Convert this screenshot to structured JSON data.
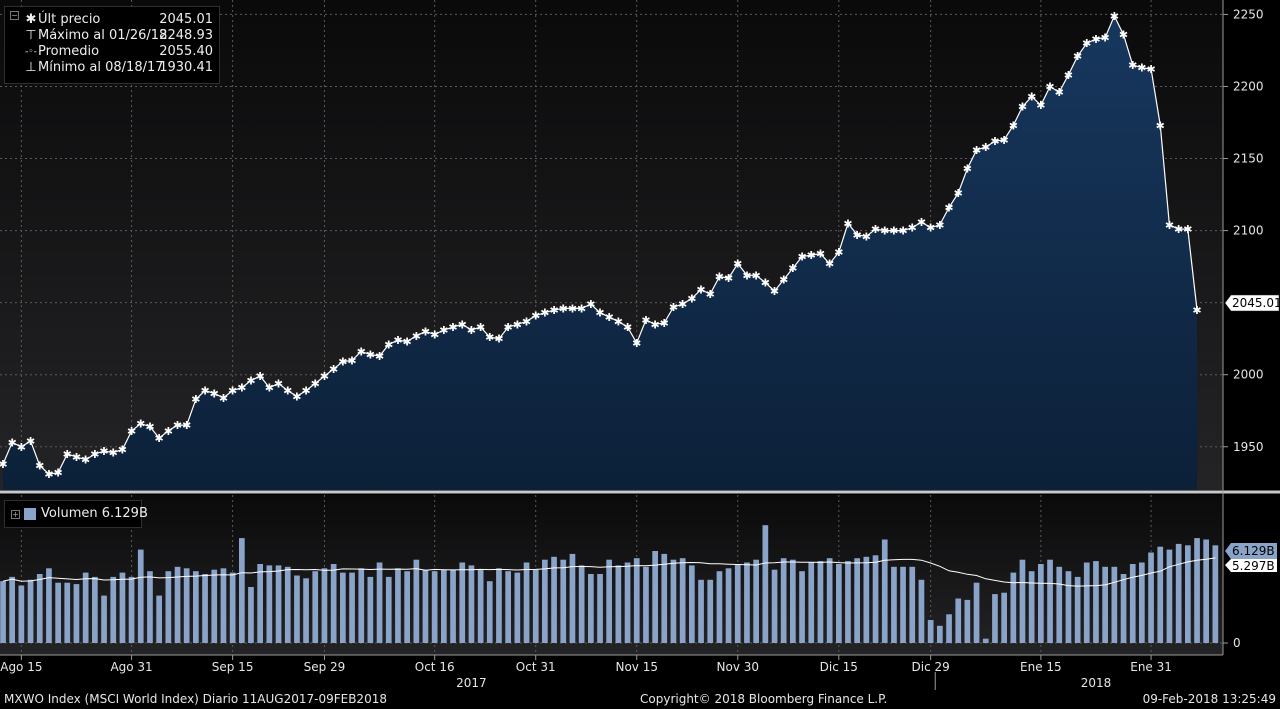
{
  "legend": {
    "rows": [
      {
        "icon": "✱",
        "label": "Últ precio",
        "value": "2045.01"
      },
      {
        "icon": "⊤",
        "label": "Máximo al 01/26/18",
        "value": "2248.93"
      },
      {
        "icon": "-◦-",
        "label": "Promedio",
        "value": "2055.40"
      },
      {
        "icon": "⊥",
        "label": "Mínimo al 08/18/17",
        "value": "1930.41"
      }
    ]
  },
  "volume_legend": {
    "label": "Volumen 6.129B"
  },
  "footer": {
    "left": "MXWO Index (MSCI World Index)  Diario 11AUG2017-09FEB2018",
    "center": "Copyright© 2018 Bloomberg Finance L.P.",
    "right": "09-Feb-2018 13:25:49"
  },
  "colors": {
    "area_top": "#17375e",
    "area_bottom": "#0c2038",
    "line": "#ffffff",
    "volume_bar": "#8aa3c8",
    "grid": "#5a5a5a"
  },
  "chart_data": [
    {
      "type": "area",
      "title": "",
      "series": [
        {
          "name": "Últ precio"
        }
      ],
      "y_ticks": [
        "2250",
        "2200",
        "2150",
        "2100",
        "2000",
        "1950"
      ],
      "ylim": [
        1920,
        2260
      ],
      "last_value_label": "2045.01",
      "x_tick_labels": [
        "Ago 15",
        "Ago 31",
        "Sep 15",
        "Sep 29",
        "Oct 16",
        "Oct 31",
        "Nov 15",
        "Nov 30",
        "Dic 15",
        "Dic 29",
        "Ene 15",
        "Ene 31"
      ],
      "x_tick_index": [
        2,
        14,
        25,
        35,
        47,
        58,
        69,
        80,
        91,
        101,
        113,
        125
      ],
      "year_labels": [
        {
          "label": "2017",
          "index": 51
        },
        {
          "label": "2018",
          "index": 119
        }
      ],
      "values": [
        1938,
        1953,
        1950,
        1954,
        1937,
        1931,
        1932,
        1945,
        1943,
        1941,
        1945,
        1947,
        1946,
        1948,
        1961,
        1966,
        1964,
        1956,
        1961,
        1965,
        1965,
        1983,
        1989,
        1987,
        1984,
        1989,
        1991,
        1996,
        1999,
        1991,
        1994,
        1989,
        1985,
        1989,
        1994,
        1999,
        2004,
        2009,
        2010,
        2016,
        2014,
        2013,
        2021,
        2024,
        2023,
        2027,
        2030,
        2028,
        2031,
        2033,
        2035,
        2031,
        2033,
        2026,
        2025,
        2033,
        2035,
        2037,
        2041,
        2043,
        2045,
        2046,
        2046,
        2046,
        2049,
        2043,
        2040,
        2037,
        2033,
        2022,
        2038,
        2035,
        2036,
        2047,
        2049,
        2053,
        2059,
        2056,
        2068,
        2067,
        2077,
        2069,
        2069,
        2064,
        2058,
        2066,
        2074,
        2082,
        2083,
        2084,
        2077,
        2085,
        2105,
        2097,
        2096,
        2101,
        2100,
        2100,
        2100,
        2102,
        2106,
        2102,
        2104,
        2116,
        2126,
        2143,
        2156,
        2158,
        2162,
        2163,
        2173,
        2186,
        2193,
        2187,
        2200,
        2196,
        2208,
        2221,
        2230,
        2233,
        2234,
        2249,
        2236,
        2215,
        2213,
        2212,
        2173,
        2104,
        2101,
        2101,
        2045.01
      ]
    },
    {
      "type": "bar",
      "title": "",
      "series": [
        {
          "name": "Volumen"
        },
        {
          "name": "5.297B"
        }
      ],
      "volume_label": "6.129B",
      "avg_label": "5.297B",
      "y_ticks": [
        "0"
      ],
      "ylim": [
        0,
        10.3
      ],
      "values": [
        4.3,
        4.6,
        4.0,
        4.4,
        4.8,
        5.2,
        4.2,
        4.2,
        4.1,
        4.9,
        4.6,
        3.3,
        4.6,
        4.9,
        4.6,
        6.5,
        5.0,
        3.3,
        5.0,
        5.3,
        5.2,
        5.0,
        4.8,
        5.1,
        5.2,
        4.9,
        7.3,
        3.9,
        5.5,
        5.4,
        5.4,
        5.3,
        4.7,
        4.5,
        5.0,
        5.2,
        5.5,
        4.9,
        4.9,
        5.2,
        4.6,
        5.6,
        4.6,
        5.2,
        5.0,
        5.8,
        5.1,
        5.0,
        5.1,
        5.1,
        5.6,
        5.4,
        5.1,
        4.3,
        5.2,
        5.0,
        4.9,
        5.6,
        5.1,
        5.8,
        6.0,
        5.8,
        6.2,
        5.4,
        4.8,
        4.8,
        5.8,
        5.4,
        5.6,
        5.9,
        5.3,
        6.4,
        6.2,
        5.8,
        5.9,
        5.4,
        4.4,
        4.4,
        5.0,
        5.2,
        5.5,
        5.6,
        5.8,
        8.2,
        5.1,
        5.9,
        5.8,
        5.0,
        5.6,
        5.7,
        5.9,
        5.5,
        5.7,
        5.9,
        6.0,
        6.1,
        7.2,
        5.3,
        5.3,
        5.3,
        4.4,
        1.6,
        1.2,
        2.0,
        3.1,
        3.0,
        4.2,
        0.3,
        3.4,
        3.5,
        4.9,
        5.8,
        5.0,
        5.5,
        5.8,
        5.3,
        5.0,
        4.6,
        5.6,
        5.7,
        5.3,
        5.3,
        4.8,
        5.5,
        5.6,
        6.3,
        6.7,
        6.5,
        6.9,
        6.8,
        7.3,
        7.2,
        6.8
      ]
    }
  ]
}
